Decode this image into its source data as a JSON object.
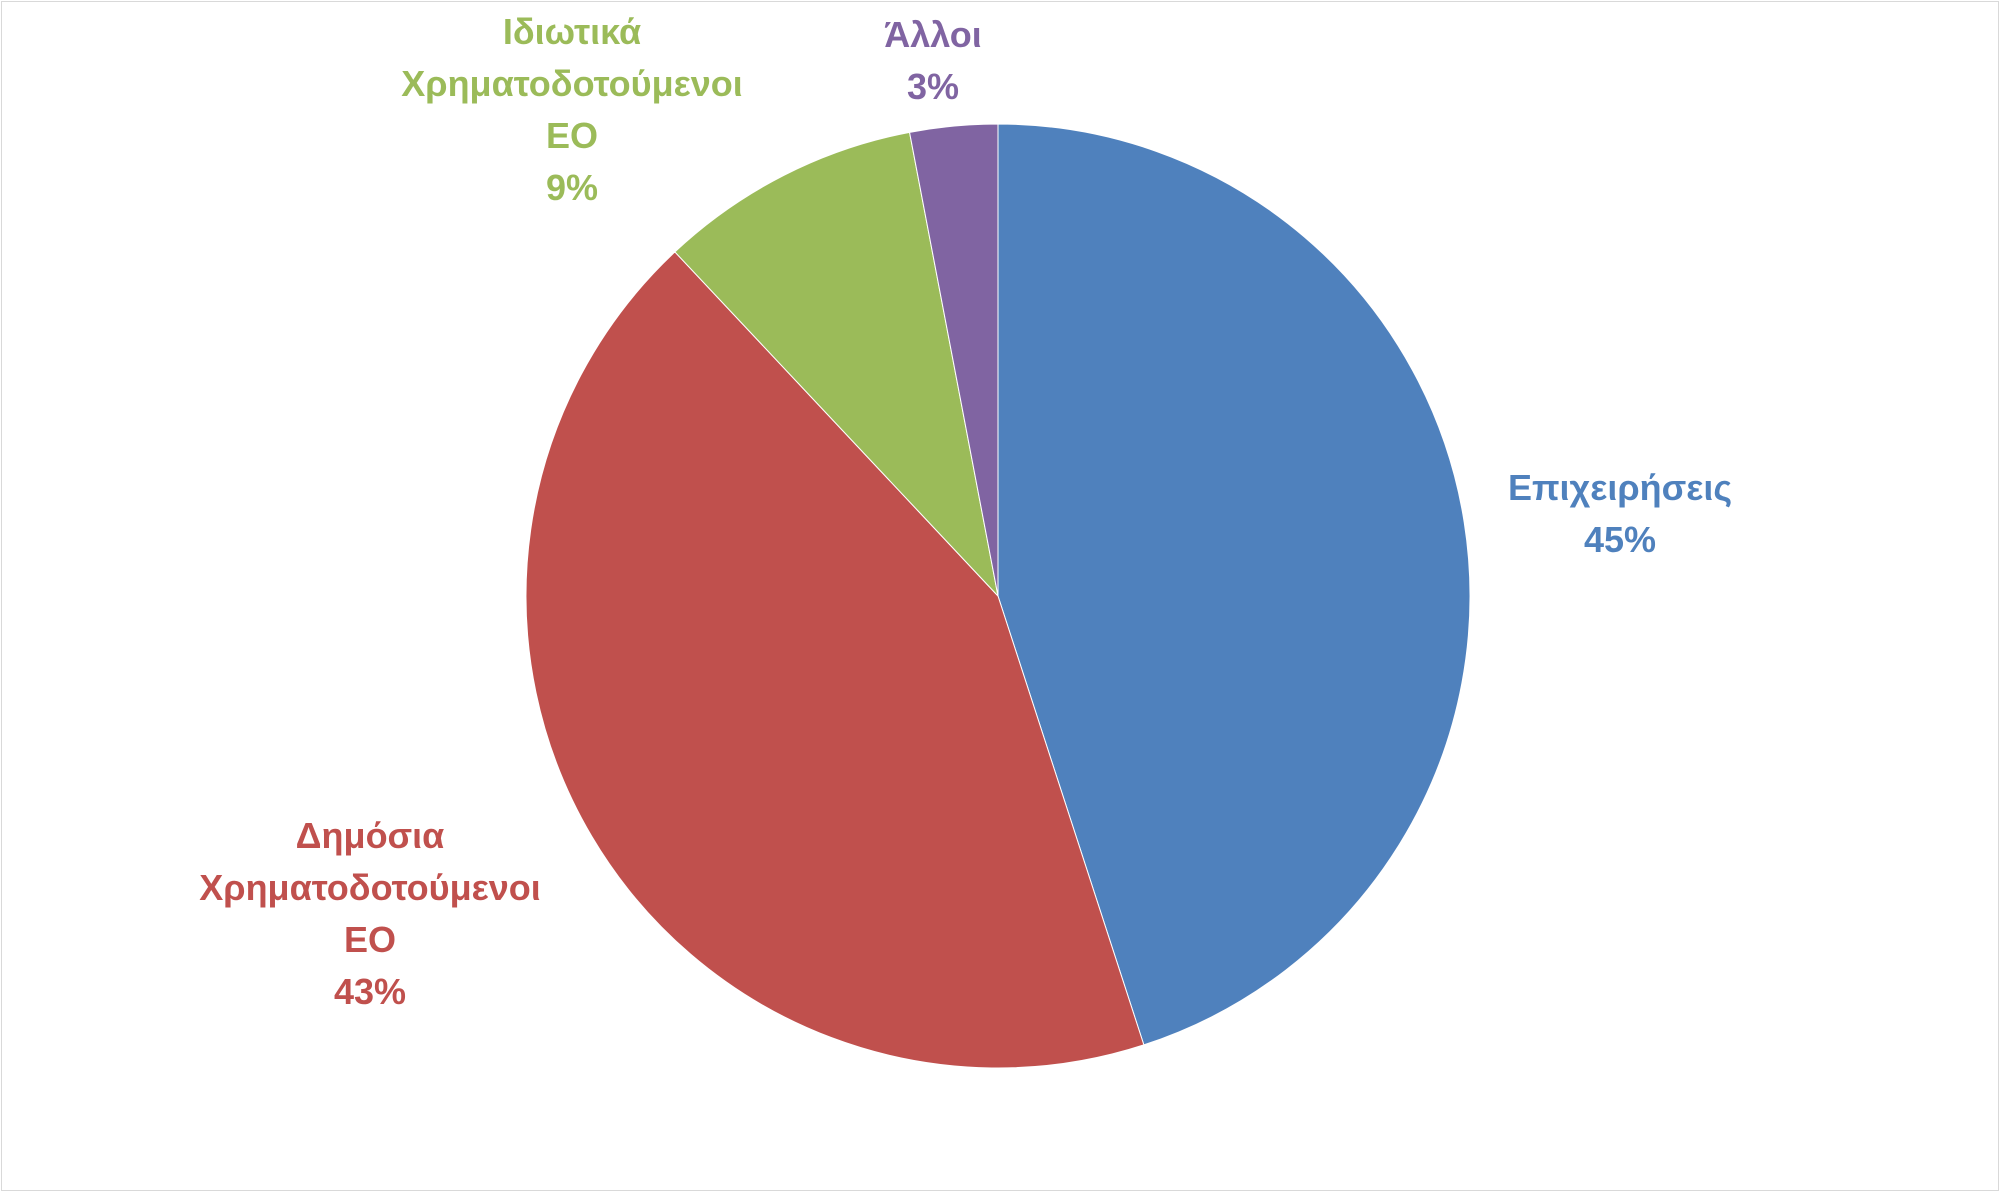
{
  "chart_data": {
    "type": "pie",
    "title": "",
    "start_angle_deg": 0,
    "direction": "clockwise",
    "slices": [
      {
        "name": "Επιχειρήσεις",
        "value": 45,
        "value_label": "45%",
        "color": "#4f81bd",
        "label_lines": [
          "Επιχειρήσεις",
          "45%"
        ]
      },
      {
        "name": "Δημόσια Χρηματοδοτούμενοι ΕΟ",
        "value": 43,
        "value_label": "43%",
        "color": "#c0504d",
        "label_lines": [
          "Δημόσια",
          "Χρηματοδοτούμενοι",
          "ΕΟ",
          "43%"
        ]
      },
      {
        "name": "Ιδιωτικά Χρηματοδοτούμενοι ΕΟ",
        "value": 9,
        "value_label": "9%",
        "color": "#9bbb59",
        "label_lines": [
          "Ιδιωτικά",
          "Χρηματοδοτούμενοι",
          "ΕΟ",
          "9%"
        ]
      },
      {
        "name": "Άλλοι",
        "value": 3,
        "value_label": "3%",
        "color": "#8064a2",
        "label_lines": [
          "Άλλοι",
          "3%"
        ]
      }
    ],
    "legend": "none",
    "data_labels": "outside"
  }
}
